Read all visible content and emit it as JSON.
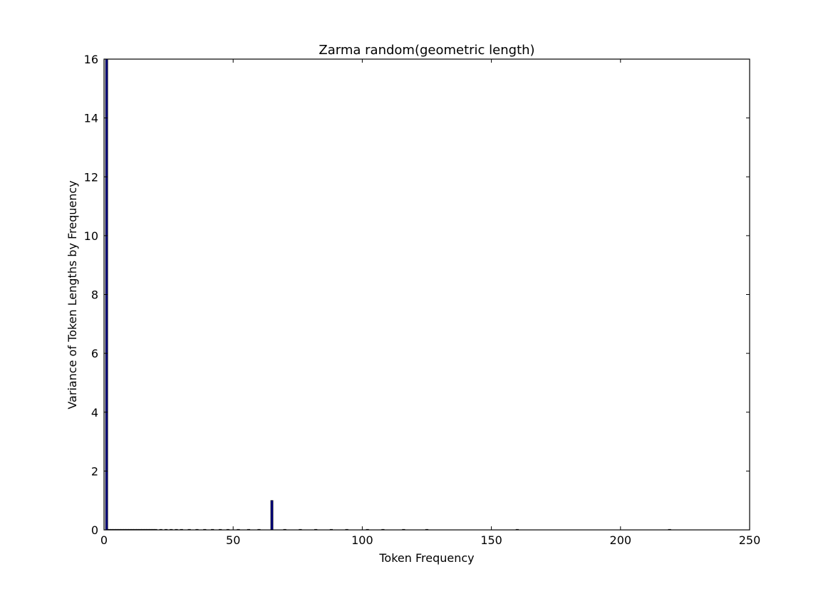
{
  "chart_data": {
    "type": "bar",
    "title": "Zarma random(geometric length)",
    "xlabel": "Token Frequency",
    "ylabel": "Variance of Token Lengths by Frequency",
    "xlim": [
      0,
      250
    ],
    "ylim": [
      0,
      16
    ],
    "xticks": [
      0,
      50,
      100,
      150,
      200,
      250
    ],
    "yticks": [
      0,
      2,
      4,
      6,
      8,
      10,
      12,
      14,
      16
    ],
    "grid": false,
    "bar_color": "#000080",
    "bars": [
      {
        "x": 1,
        "value": 16
      },
      {
        "x": 65,
        "value": 1
      },
      {
        "x": 2,
        "value": 0
      },
      {
        "x": 3,
        "value": 0
      },
      {
        "x": 4,
        "value": 0
      },
      {
        "x": 5,
        "value": 0
      },
      {
        "x": 6,
        "value": 0
      },
      {
        "x": 7,
        "value": 0
      },
      {
        "x": 8,
        "value": 0
      },
      {
        "x": 9,
        "value": 0
      },
      {
        "x": 10,
        "value": 0
      },
      {
        "x": 11,
        "value": 0
      },
      {
        "x": 12,
        "value": 0
      },
      {
        "x": 13,
        "value": 0
      },
      {
        "x": 14,
        "value": 0
      },
      {
        "x": 15,
        "value": 0
      },
      {
        "x": 16,
        "value": 0
      },
      {
        "x": 17,
        "value": 0
      },
      {
        "x": 18,
        "value": 0
      },
      {
        "x": 19,
        "value": 0
      },
      {
        "x": 20,
        "value": 0
      },
      {
        "x": 22,
        "value": 0
      },
      {
        "x": 24,
        "value": 0
      },
      {
        "x": 26,
        "value": 0
      },
      {
        "x": 28,
        "value": 0
      },
      {
        "x": 30,
        "value": 0
      },
      {
        "x": 33,
        "value": 0
      },
      {
        "x": 36,
        "value": 0
      },
      {
        "x": 39,
        "value": 0
      },
      {
        "x": 42,
        "value": 0
      },
      {
        "x": 45,
        "value": 0
      },
      {
        "x": 48,
        "value": 0
      },
      {
        "x": 52,
        "value": 0
      },
      {
        "x": 56,
        "value": 0
      },
      {
        "x": 60,
        "value": 0
      },
      {
        "x": 70,
        "value": 0
      },
      {
        "x": 76,
        "value": 0
      },
      {
        "x": 82,
        "value": 0
      },
      {
        "x": 88,
        "value": 0
      },
      {
        "x": 94,
        "value": 0
      },
      {
        "x": 102,
        "value": 0
      },
      {
        "x": 108,
        "value": 0
      },
      {
        "x": 116,
        "value": 0
      },
      {
        "x": 125,
        "value": 0
      },
      {
        "x": 160,
        "value": 0
      },
      {
        "x": 219,
        "value": 0
      }
    ]
  }
}
